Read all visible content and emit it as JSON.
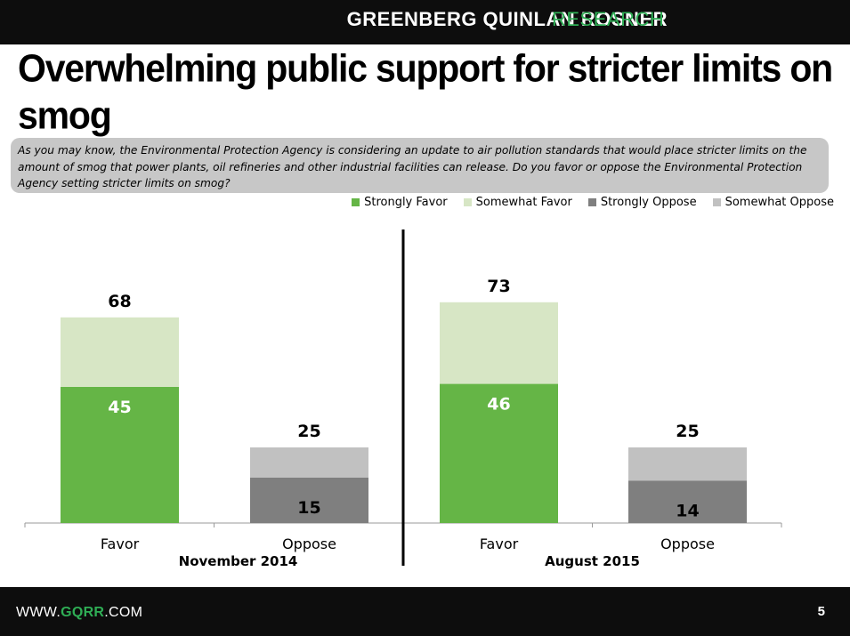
{
  "header": {
    "brand": "GREENBERG QUINLAN ROSNER",
    "brand_accent": "RESEARCH"
  },
  "title": "Overwhelming public support for stricter limits on smog",
  "question": "As you may know, the Environmental Protection Agency is considering an update to air pollution standards that would place stricter limits on the amount of smog that power plants, oil refineries and other industrial facilities can release. Do you favor or oppose the Environmental Protection Agency setting stricter limits on smog?",
  "legend": [
    {
      "label": "Strongly Favor",
      "color": "#65b546"
    },
    {
      "label": "Somewhat Favor",
      "color": "#d7e6c5"
    },
    {
      "label": "Strongly Oppose",
      "color": "#7f7f7f"
    },
    {
      "label": "Somewhat Oppose",
      "color": "#c1c1c1"
    }
  ],
  "colors": {
    "strongly_favor": "#65b546",
    "somewhat_favor": "#d7e6c5",
    "strongly_oppose": "#7f7f7f",
    "somewhat_oppose": "#c1c1c1"
  },
  "chart_data": {
    "type": "bar",
    "stacked": true,
    "groups": [
      {
        "label": "November 2014",
        "categories": [
          "Favor",
          "Oppose"
        ],
        "strong": [
          45,
          15
        ],
        "total": [
          68,
          25
        ]
      },
      {
        "label": "August 2015",
        "categories": [
          "Favor",
          "Oppose"
        ],
        "strong": [
          46,
          14
        ],
        "total": [
          73,
          25
        ]
      }
    ]
  },
  "footer": {
    "url_prefix": "WWW.",
    "url_emphasis": "GQRR",
    "url_suffix": ".COM",
    "page_number": "5"
  }
}
